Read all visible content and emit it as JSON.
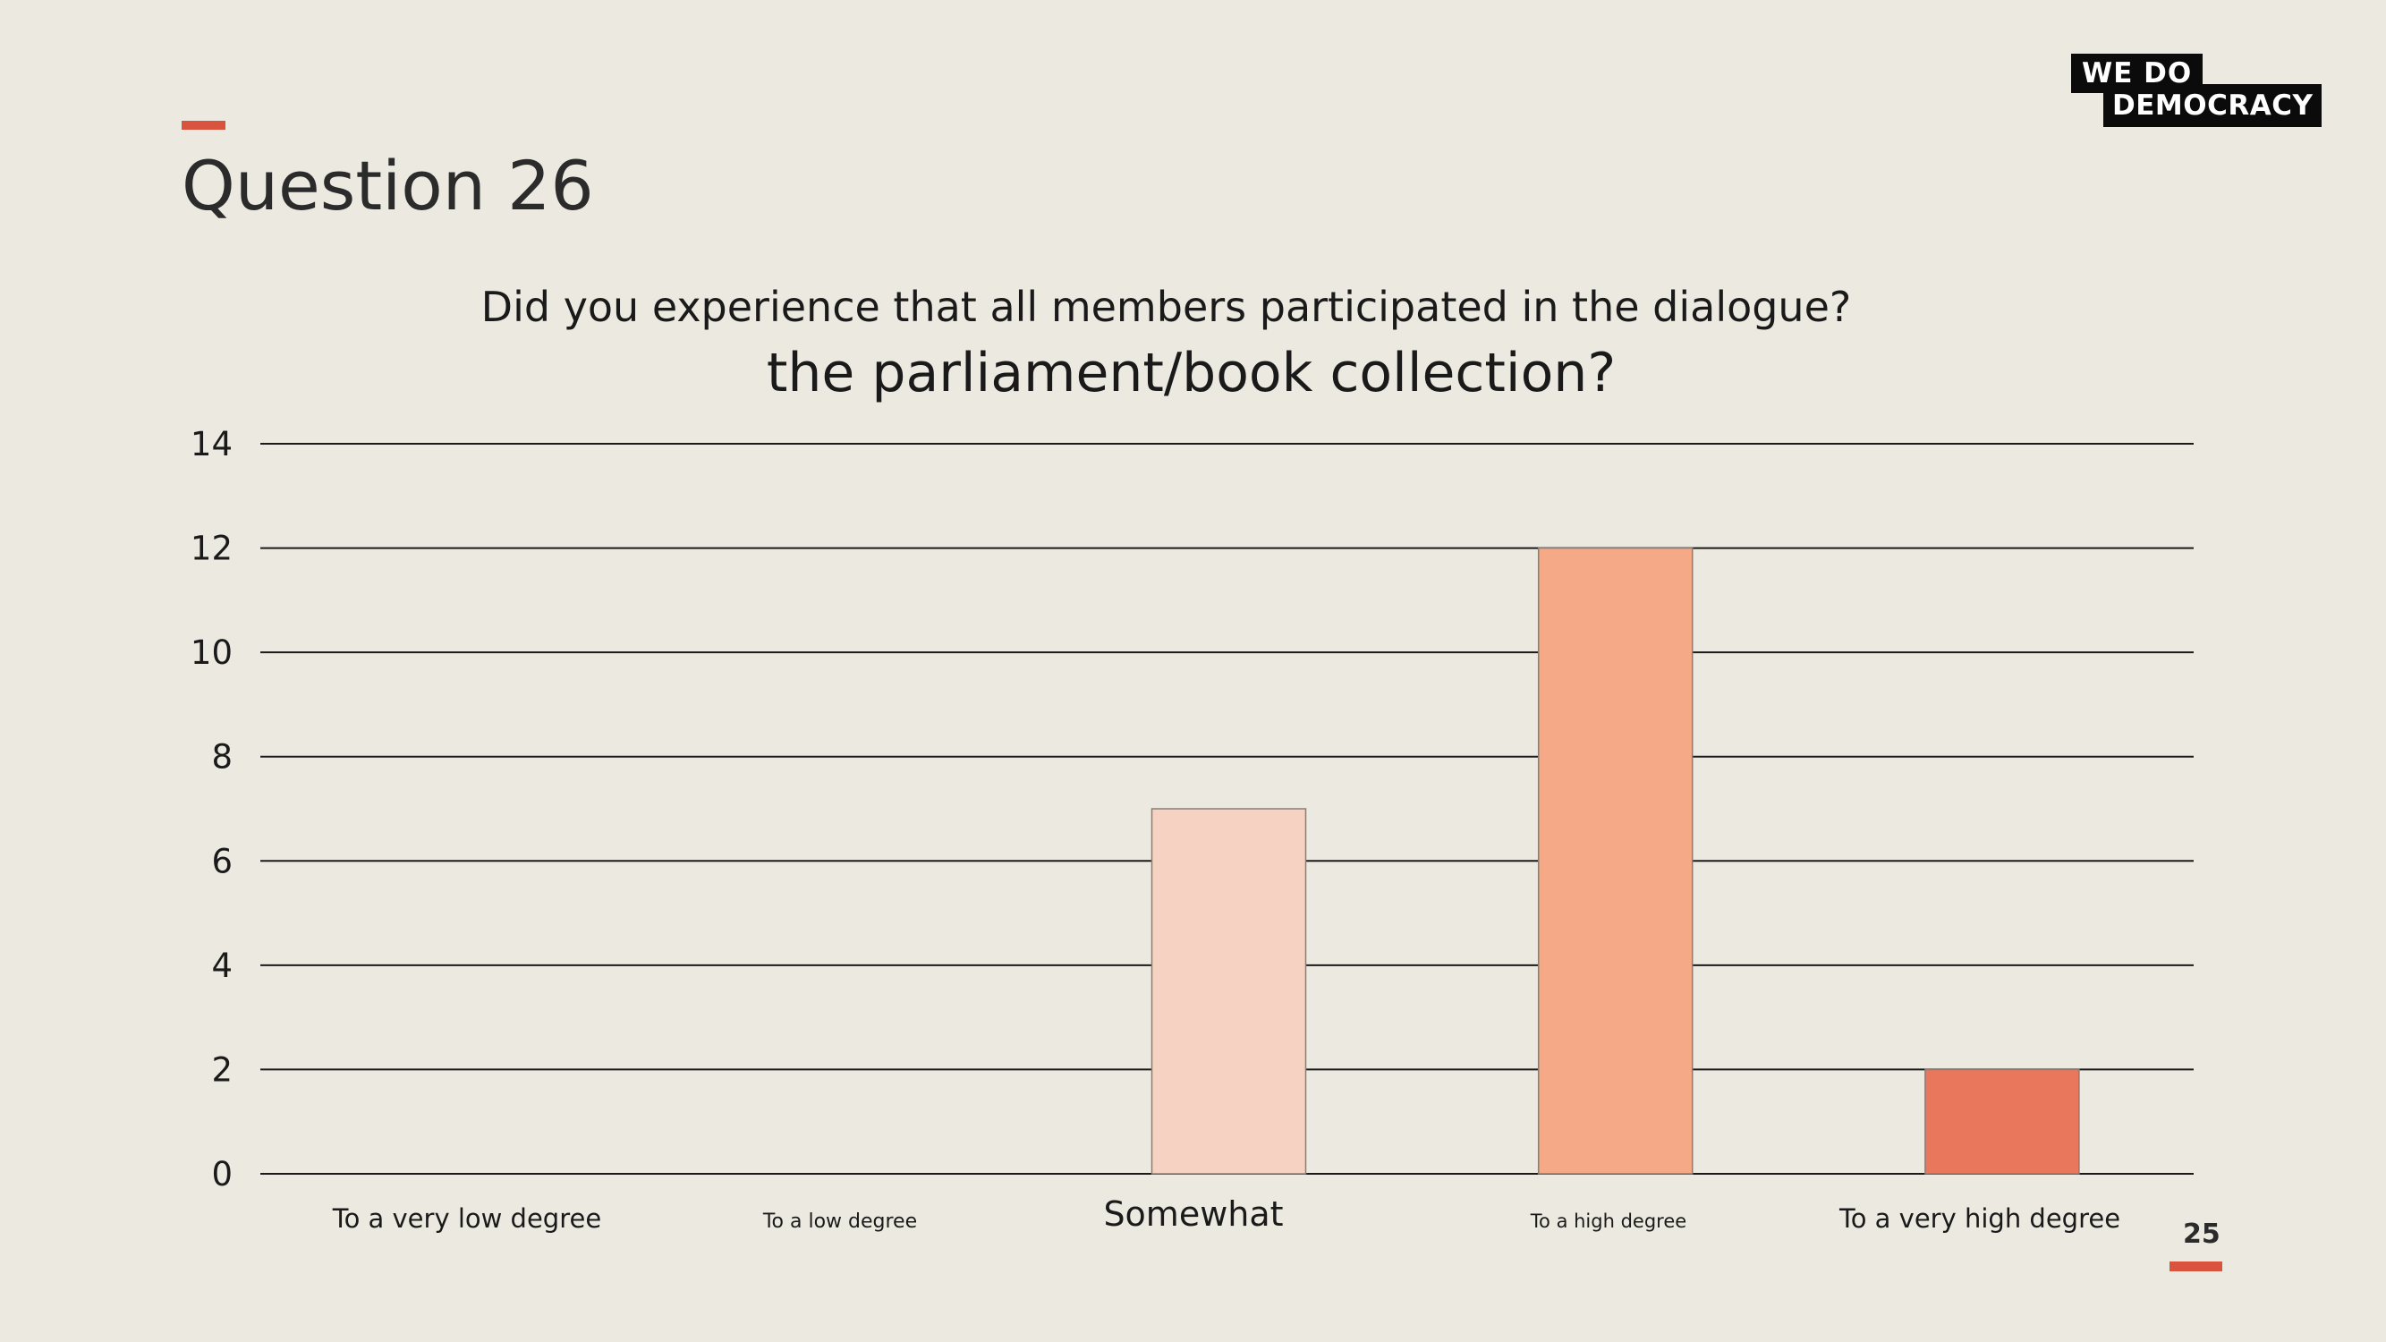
{
  "slide": {
    "title": "Question 26",
    "page_number": "25",
    "accent_color": "#D9533E"
  },
  "logo": {
    "line1": "WE  DO",
    "line2": "DEMOCRACY"
  },
  "chart_data": {
    "type": "bar",
    "title_line1": "Did you experience that all members participated in the dialogue?",
    "title_line2": "the parliament/book collection?",
    "categories": [
      "To a very low degree",
      "To a low degree",
      "Somewhat",
      "To a high degree",
      "To a very high degree"
    ],
    "values": [
      0,
      0,
      7,
      12,
      2
    ],
    "bar_colors": [
      "#F5D2C2",
      "#F5D2C2",
      "#F5D2C2",
      "#F5A986",
      "#E8775C"
    ],
    "ylim": [
      0,
      14
    ],
    "yticks": [
      0,
      2,
      4,
      6,
      8,
      10,
      12,
      14
    ],
    "grid": true,
    "legend": "none"
  }
}
